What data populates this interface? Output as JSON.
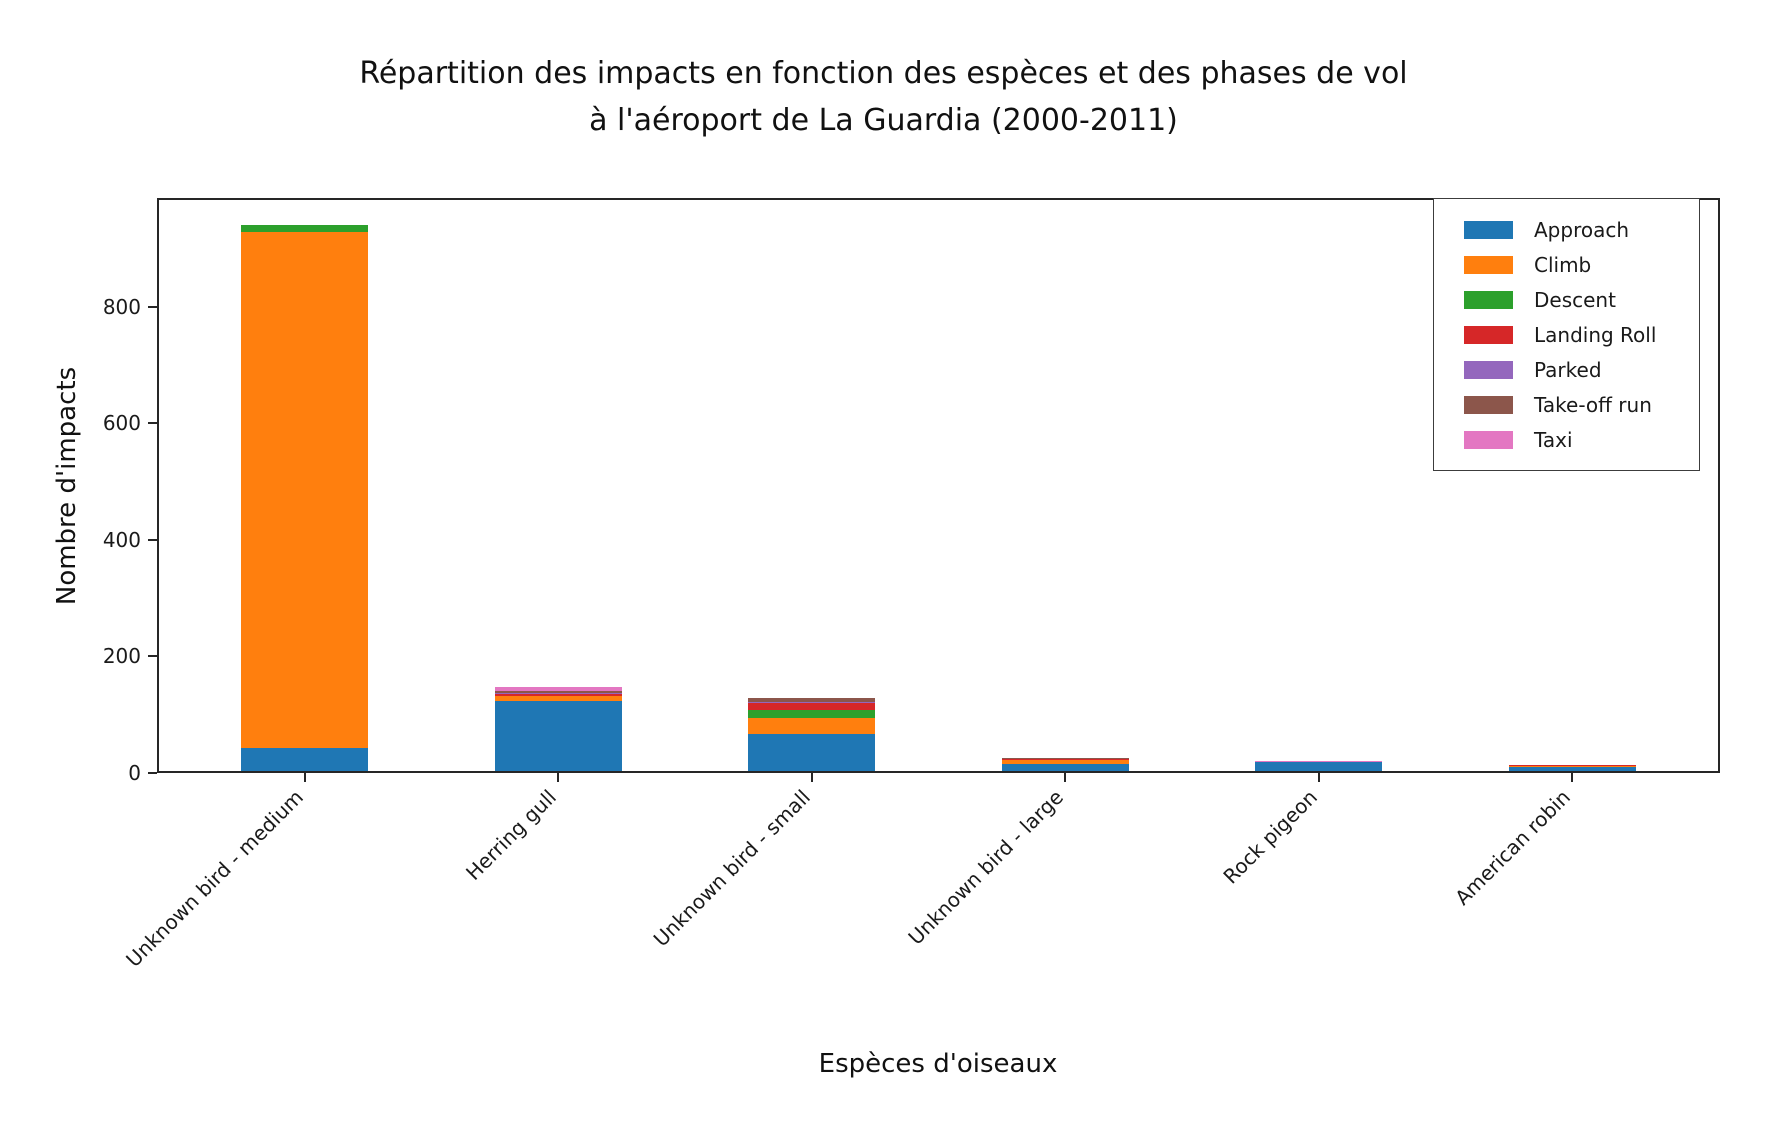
{
  "title": {
    "line1": "Répartition des impacts en fonction des espèces et des phases de vol",
    "line2": "à l'aéroport de La Guardia (2000-2011)"
  },
  "chart_data": {
    "type": "bar",
    "stacked": true,
    "title": "Répartition des impacts en fonction des espèces et des phases de vol à l'aéroport de La Guardia (2000-2011)",
    "xlabel": "Espèces d'oiseaux",
    "ylabel": "Nombre d'impacts",
    "categories": [
      "Unknown bird - medium",
      "Herring gull",
      "Unknown bird - small",
      "Unknown bird - large",
      "Rock pigeon",
      "American robin"
    ],
    "series": [
      {
        "name": "Approach",
        "color": "#1f77b4",
        "values": [
          40,
          120,
          64,
          12,
          15,
          7
        ]
      },
      {
        "name": "Climb",
        "color": "#ff7f0e",
        "values": [
          885,
          9,
          27,
          7,
          0,
          1
        ]
      },
      {
        "name": "Descent",
        "color": "#2ca02c",
        "values": [
          12,
          0,
          13,
          0,
          0,
          0
        ]
      },
      {
        "name": "Landing Roll",
        "color": "#d62728",
        "values": [
          0,
          3,
          12,
          2,
          0,
          3
        ]
      },
      {
        "name": "Parked",
        "color": "#9467bd",
        "values": [
          0,
          2,
          3,
          0,
          0,
          0
        ]
      },
      {
        "name": "Take-off run",
        "color": "#8c564b",
        "values": [
          0,
          3,
          6,
          2,
          0,
          0
        ]
      },
      {
        "name": "Taxi",
        "color": "#e377c2",
        "values": [
          0,
          8,
          0,
          0,
          2,
          0
        ]
      }
    ],
    "totals": [
      937,
      145,
      125,
      23,
      17,
      11
    ],
    "yticks": [
      0,
      200,
      400,
      600,
      800
    ],
    "ylim": [
      0,
      987
    ],
    "grid": false,
    "legend_position": "upper right",
    "xtick_rotation": 45
  }
}
